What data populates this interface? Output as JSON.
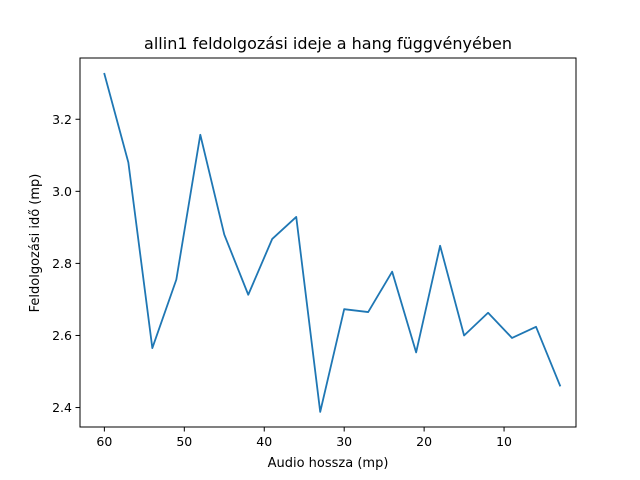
{
  "chart_data": {
    "type": "line",
    "title": "allin1 feldolgozási ideje a hang függvényében",
    "xlabel": "Audio hossza (mp)",
    "ylabel": "Feldolgozási idő (mp)",
    "x_inverted": true,
    "xlim": [
      63.05,
      1.0
    ],
    "ylim": [
      2.346,
      3.37
    ],
    "xticks": [
      60,
      50,
      40,
      30,
      20,
      10
    ],
    "xtick_labels": [
      "60",
      "50",
      "40",
      "30",
      "20",
      "10"
    ],
    "yticks": [
      2.4,
      2.6,
      2.8,
      3.0,
      3.2
    ],
    "ytick_labels": [
      "2.4",
      "2.6",
      "2.8",
      "3.0",
      "3.2"
    ],
    "grid": false,
    "legend": false,
    "series": [
      {
        "color": "#1f77b4",
        "x": [
          60,
          57,
          54,
          51,
          48,
          45,
          42,
          39,
          36,
          33,
          30,
          27,
          24,
          21,
          18,
          15,
          12,
          9,
          6,
          3
        ],
        "y": [
          3.326,
          3.08,
          2.565,
          2.755,
          3.157,
          2.88,
          2.713,
          2.868,
          2.929,
          2.388,
          2.673,
          2.665,
          2.777,
          2.553,
          2.849,
          2.6,
          2.663,
          2.593,
          2.624,
          2.461
        ]
      }
    ]
  }
}
